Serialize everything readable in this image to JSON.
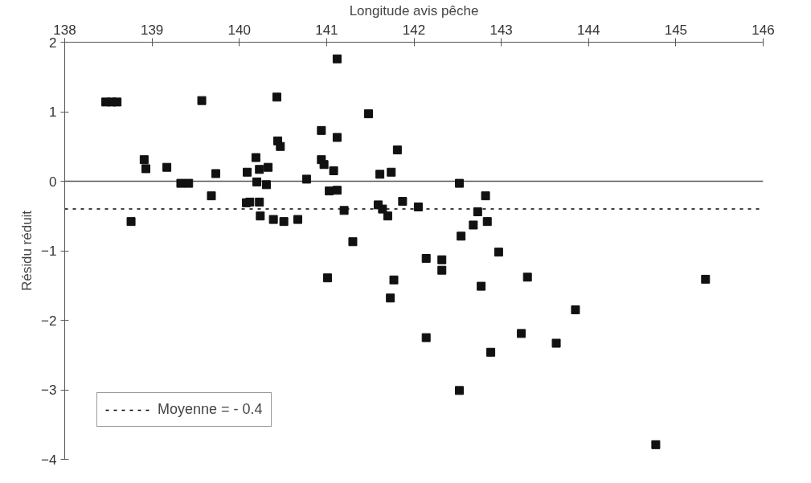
{
  "chart_data": {
    "type": "scatter",
    "xlabel": "Longitude avis pêche",
    "ylabel": "Résidu réduit",
    "xlim": [
      138,
      146
    ],
    "ylim": [
      -4,
      2
    ],
    "xticks": [
      138,
      139,
      140,
      141,
      142,
      143,
      144,
      145,
      146
    ],
    "yticks": [
      -4,
      -3,
      -2,
      -1,
      0,
      1,
      2
    ],
    "grid": false,
    "marker": "square",
    "legend": "bottom left",
    "ref_lines": [
      {
        "axis": "y",
        "value": 0,
        "label": null,
        "line_style": "solid",
        "color": "#555555"
      },
      {
        "axis": "y",
        "value": -0.4,
        "label": "Moyenne = - 0.4",
        "line_style": "dashed",
        "color": "#000000"
      }
    ],
    "series": [
      {
        "color": "#111111",
        "x": [
          138.47,
          138.54,
          138.6,
          139.57,
          138.91,
          138.93,
          139.17,
          139.33,
          139.42,
          139.73,
          139.68,
          138.76,
          140.09,
          140.19,
          140.23,
          140.33,
          140.2,
          140.31,
          140.08,
          140.12,
          140.23,
          140.24,
          140.43,
          140.44,
          140.47,
          140.39,
          140.51,
          140.67,
          140.77,
          140.94,
          140.94,
          140.97,
          141.08,
          141.12,
          141.12,
          141.03,
          141.12,
          141.2,
          141.3,
          141.48,
          141.81,
          141.61,
          141.74,
          141.59,
          141.64,
          141.7,
          141.87,
          142.05,
          142.52,
          142.82,
          142.73,
          142.68,
          142.84,
          142.54,
          142.97,
          142.14,
          142.32,
          142.32,
          141.01,
          141.77,
          141.73,
          142.77,
          143.3,
          145.34,
          143.85,
          142.14,
          142.88,
          143.23,
          143.63,
          142.52,
          144.77
        ],
        "values": [
          1.14,
          1.14,
          1.14,
          1.16,
          0.31,
          0.18,
          0.2,
          -0.03,
          -0.03,
          0.11,
          -0.21,
          -0.58,
          0.13,
          0.34,
          0.17,
          0.2,
          -0.01,
          -0.05,
          -0.31,
          -0.3,
          -0.3,
          -0.5,
          1.21,
          0.58,
          0.5,
          -0.55,
          -0.58,
          -0.55,
          0.03,
          0.73,
          0.31,
          0.24,
          0.15,
          0.63,
          1.76,
          -0.14,
          -0.13,
          -0.42,
          -0.87,
          0.97,
          0.45,
          0.1,
          0.13,
          -0.34,
          -0.4,
          -0.5,
          -0.29,
          -0.37,
          -0.03,
          -0.21,
          -0.44,
          -0.63,
          -0.58,
          -0.79,
          -1.02,
          -1.11,
          -1.13,
          -1.28,
          -1.39,
          -1.42,
          -1.68,
          -1.51,
          -1.38,
          -1.41,
          -1.85,
          -2.25,
          -2.46,
          -2.19,
          -2.33,
          -3.01,
          -3.79
        ]
      }
    ]
  }
}
